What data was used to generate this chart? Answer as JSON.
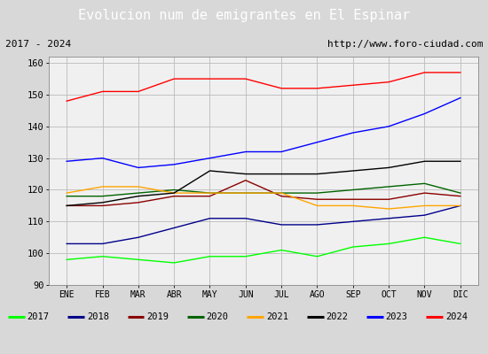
{
  "title": "Evolucion num de emigrantes en El Espinar",
  "subtitle_left": "2017 - 2024",
  "subtitle_right": "http://www.foro-ciudad.com",
  "ylim": [
    90,
    162
  ],
  "yticks": [
    90,
    100,
    110,
    120,
    130,
    140,
    150,
    160
  ],
  "months": [
    "ENE",
    "FEB",
    "MAR",
    "ABR",
    "MAY",
    "JUN",
    "JUL",
    "AGO",
    "SEP",
    "OCT",
    "NOV",
    "DIC"
  ],
  "series": {
    "2017": {
      "color": "#00ff00",
      "values": [
        98,
        99,
        98,
        97,
        99,
        99,
        101,
        99,
        102,
        103,
        105,
        103
      ]
    },
    "2018": {
      "color": "#00008b",
      "values": [
        103,
        103,
        105,
        108,
        111,
        111,
        109,
        109,
        110,
        111,
        112,
        115
      ]
    },
    "2019": {
      "color": "#8b0000",
      "values": [
        115,
        115,
        116,
        118,
        118,
        123,
        118,
        117,
        117,
        117,
        119,
        118
      ]
    },
    "2020": {
      "color": "#006400",
      "values": [
        118,
        118,
        119,
        120,
        119,
        119,
        119,
        119,
        120,
        121,
        122,
        119
      ]
    },
    "2021": {
      "color": "#ffa500",
      "values": [
        119,
        121,
        121,
        119,
        119,
        119,
        119,
        115,
        115,
        114,
        115,
        115
      ]
    },
    "2022": {
      "color": "#000000",
      "values": [
        115,
        116,
        118,
        119,
        126,
        125,
        125,
        125,
        126,
        127,
        129,
        129
      ]
    },
    "2023": {
      "color": "#0000ff",
      "values": [
        129,
        130,
        127,
        128,
        130,
        132,
        132,
        135,
        138,
        140,
        144,
        149
      ]
    },
    "2024": {
      "color": "#ff0000",
      "values": [
        148,
        151,
        151,
        155,
        155,
        155,
        152,
        152,
        153,
        154,
        157,
        157
      ]
    }
  },
  "background_color": "#d8d8d8",
  "plot_bg_color": "#f0f0f0",
  "title_bg_color": "#5b8ed6",
  "title_color": "#ffffff",
  "grid_color": "#bbbbbb",
  "legend_order": [
    "2017",
    "2018",
    "2019",
    "2020",
    "2021",
    "2022",
    "2023",
    "2024"
  ]
}
